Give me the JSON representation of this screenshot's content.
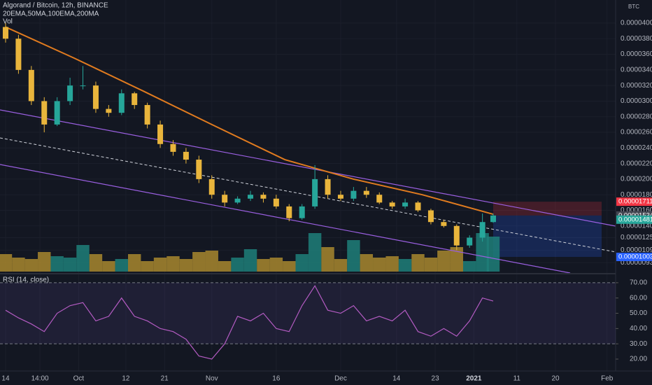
{
  "chart_data": {
    "type": "candlestick",
    "title": "Algorand / Bitcoin, 12h, BINANCE",
    "indicators": "20EMA,50MA,100EMA,200MA",
    "volume_label": "Vol",
    "currency": "BTC",
    "up_color": "#26a69a",
    "down_color": "#e9b53c",
    "x": [
      0,
      3,
      6,
      9,
      12,
      15,
      18,
      21,
      24,
      27,
      30,
      33,
      36,
      39,
      42,
      45,
      48,
      51,
      54,
      57,
      60,
      63,
      66,
      69,
      72,
      75,
      78,
      81,
      84,
      87,
      90,
      93,
      96,
      99,
      102,
      105,
      108,
      111,
      113.5
    ],
    "xlim": [
      -1.3,
      142
    ],
    "xticks": [
      {
        "value": 0,
        "label": "14"
      },
      {
        "value": 8,
        "label": "14:00"
      },
      {
        "value": 17,
        "label": "Oct"
      },
      {
        "value": 28,
        "label": "12"
      },
      {
        "value": 37,
        "label": "21"
      },
      {
        "value": 48,
        "label": "Nov"
      },
      {
        "value": 63,
        "label": "16"
      },
      {
        "value": 78,
        "label": "Dec"
      },
      {
        "value": 91,
        "label": "14"
      },
      {
        "value": 100,
        "label": "23"
      },
      {
        "value": 109,
        "label": "2021"
      },
      {
        "value": 119,
        "label": "11"
      },
      {
        "value": 128,
        "label": "20"
      },
      {
        "value": 140,
        "label": "Feb"
      }
    ],
    "open": [
      3.95e-05,
      3.8e-05,
      3.4e-05,
      3e-05,
      2.7e-05,
      3e-05,
      3.2e-05,
      3.2e-05,
      2.9e-05,
      2.85e-05,
      3.1e-05,
      2.95e-05,
      2.7e-05,
      2.45e-05,
      2.35e-05,
      2.25e-05,
      2e-05,
      1.8e-05,
      1.7e-05,
      1.75e-05,
      1.8e-05,
      1.75e-05,
      1.65e-05,
      1.5e-05,
      1.65e-05,
      2e-05,
      1.8e-05,
      1.75e-05,
      1.85e-05,
      1.8e-05,
      1.7e-05,
      1.65e-05,
      1.7e-05,
      1.6e-05,
      1.45e-05,
      1.4e-05,
      1.15e-05,
      1.25e-05,
      1.45e-05
    ],
    "high": [
      4e-05,
      3.85e-05,
      3.45e-05,
      3.05e-05,
      3.05e-05,
      3.3e-05,
      3.45e-05,
      3.25e-05,
      2.95e-05,
      3.15e-05,
      3.12e-05,
      2.98e-05,
      2.75e-05,
      2.5e-05,
      2.4e-05,
      2.3e-05,
      2.05e-05,
      1.85e-05,
      1.78e-05,
      1.85e-05,
      1.83e-05,
      1.8e-05,
      1.68e-05,
      1.68e-05,
      2.18e-05,
      2.05e-05,
      1.85e-05,
      1.9e-05,
      1.9e-05,
      1.83e-05,
      1.72e-05,
      1.75e-05,
      1.72e-05,
      1.62e-05,
      1.48e-05,
      1.42e-05,
      1.28e-05,
      1.56e-05,
      1.56e-05
    ],
    "low": [
      3.75e-05,
      3.35e-05,
      2.95e-05,
      2.6e-05,
      2.68e-05,
      2.95e-05,
      3.15e-05,
      2.85e-05,
      2.8e-05,
      2.82e-05,
      2.9e-05,
      2.65e-05,
      2.4e-05,
      2.3e-05,
      2.2e-05,
      1.95e-05,
      1.75e-05,
      1.65e-05,
      1.68e-05,
      1.72e-05,
      1.7e-05,
      1.62e-05,
      1.46e-05,
      1.48e-05,
      1.62e-05,
      1.75e-05,
      1.72e-05,
      1.72e-05,
      1.76e-05,
      1.68e-05,
      1.62e-05,
      1.62e-05,
      1.58e-05,
      1.42e-05,
      1.38e-05,
      1.09e-05,
      1.12e-05,
      1.2e-05,
      1.44e-05
    ],
    "close": [
      3.8e-05,
      3.4e-05,
      3e-05,
      2.7e-05,
      3e-05,
      3.2e-05,
      3.2e-05,
      2.9e-05,
      2.85e-05,
      3.1e-05,
      2.95e-05,
      2.7e-05,
      2.45e-05,
      2.35e-05,
      2.25e-05,
      2e-05,
      1.8e-05,
      1.7e-05,
      1.75e-05,
      1.8e-05,
      1.75e-05,
      1.65e-05,
      1.5e-05,
      1.65e-05,
      2e-05,
      1.8e-05,
      1.75e-05,
      1.85e-05,
      1.8e-05,
      1.7e-05,
      1.65e-05,
      1.7e-05,
      1.6e-05,
      1.45e-05,
      1.4e-05,
      1.15e-05,
      1.25e-05,
      1.45e-05,
      1.534e-05
    ],
    "ylim": [
      7.97e-06,
      4.296e-05
    ],
    "yticks": [
      {
        "value": 4e-05,
        "label": "0.00004000"
      },
      {
        "value": 3.8e-05,
        "label": "0.00003800"
      },
      {
        "value": 3.6e-05,
        "label": "0.00003600"
      },
      {
        "value": 3.4e-05,
        "label": "0.00003400"
      },
      {
        "value": 3.2e-05,
        "label": "0.00003200"
      },
      {
        "value": 3e-05,
        "label": "0.00003000"
      },
      {
        "value": 2.8e-05,
        "label": "0.00002800"
      },
      {
        "value": 2.6e-05,
        "label": "0.00002600"
      },
      {
        "value": 2.4e-05,
        "label": "0.00002400"
      },
      {
        "value": 2.2e-05,
        "label": "0.00002200"
      },
      {
        "value": 2e-05,
        "label": "0.00002000"
      },
      {
        "value": 1.8e-05,
        "label": "0.00001800"
      },
      {
        "value": 1.6e-05,
        "label": "0.00001600"
      },
      {
        "value": 1.4e-05,
        "label": "0.00001400"
      },
      {
        "value": 1.25e-05,
        "label": "0.00001250"
      },
      {
        "value": 1.09e-05,
        "label": "0.00001090"
      },
      {
        "value": 9.3e-06,
        "label": "0.00000930"
      }
    ],
    "volume": {
      "ylim": [
        0,
        100
      ],
      "values": [
        25,
        20,
        18,
        28,
        22,
        20,
        38,
        25,
        15,
        18,
        25,
        15,
        20,
        22,
        18,
        28,
        30,
        15,
        20,
        32,
        18,
        20,
        15,
        25,
        55,
        35,
        18,
        45,
        25,
        20,
        22,
        18,
        25,
        20,
        30,
        35,
        15,
        55,
        50
      ]
    },
    "ma": {
      "color": "#e07b1f",
      "x": [
        0,
        16,
        32,
        48,
        65,
        81,
        97,
        113.5
      ],
      "values": [
        3.95e-05,
        3.55e-05,
        3.13e-05,
        2.7e-05,
        2.25e-05,
        2e-05,
        1.8e-05,
        1.55e-05
      ]
    },
    "position": {
      "stop": 1.711e-05,
      "entry": 1.534e-05,
      "target": 1.003e-05
    },
    "last_price": 1.481e-05,
    "rsi": {
      "title": "RSI (14, close)",
      "color": "#b35bc2",
      "values": [
        52,
        47,
        43,
        38,
        50,
        55,
        57,
        45,
        48,
        60,
        48,
        45,
        40,
        38,
        33,
        22,
        20,
        30,
        48,
        45,
        50,
        40,
        38,
        55,
        68,
        52,
        50,
        55,
        45,
        48,
        45,
        52,
        38,
        35,
        40,
        35,
        45,
        60,
        58
      ],
      "ylim": [
        12.2,
        75
      ],
      "yticks": [
        {
          "value": 70,
          "label": "70.00"
        },
        {
          "value": 60,
          "label": "60.00"
        },
        {
          "value": 50,
          "label": "50.00"
        },
        {
          "value": 40,
          "label": "40.00"
        },
        {
          "value": 30,
          "label": "30.00"
        },
        {
          "value": 20,
          "label": "20.00"
        }
      ],
      "band": [
        30,
        70
      ]
    }
  }
}
